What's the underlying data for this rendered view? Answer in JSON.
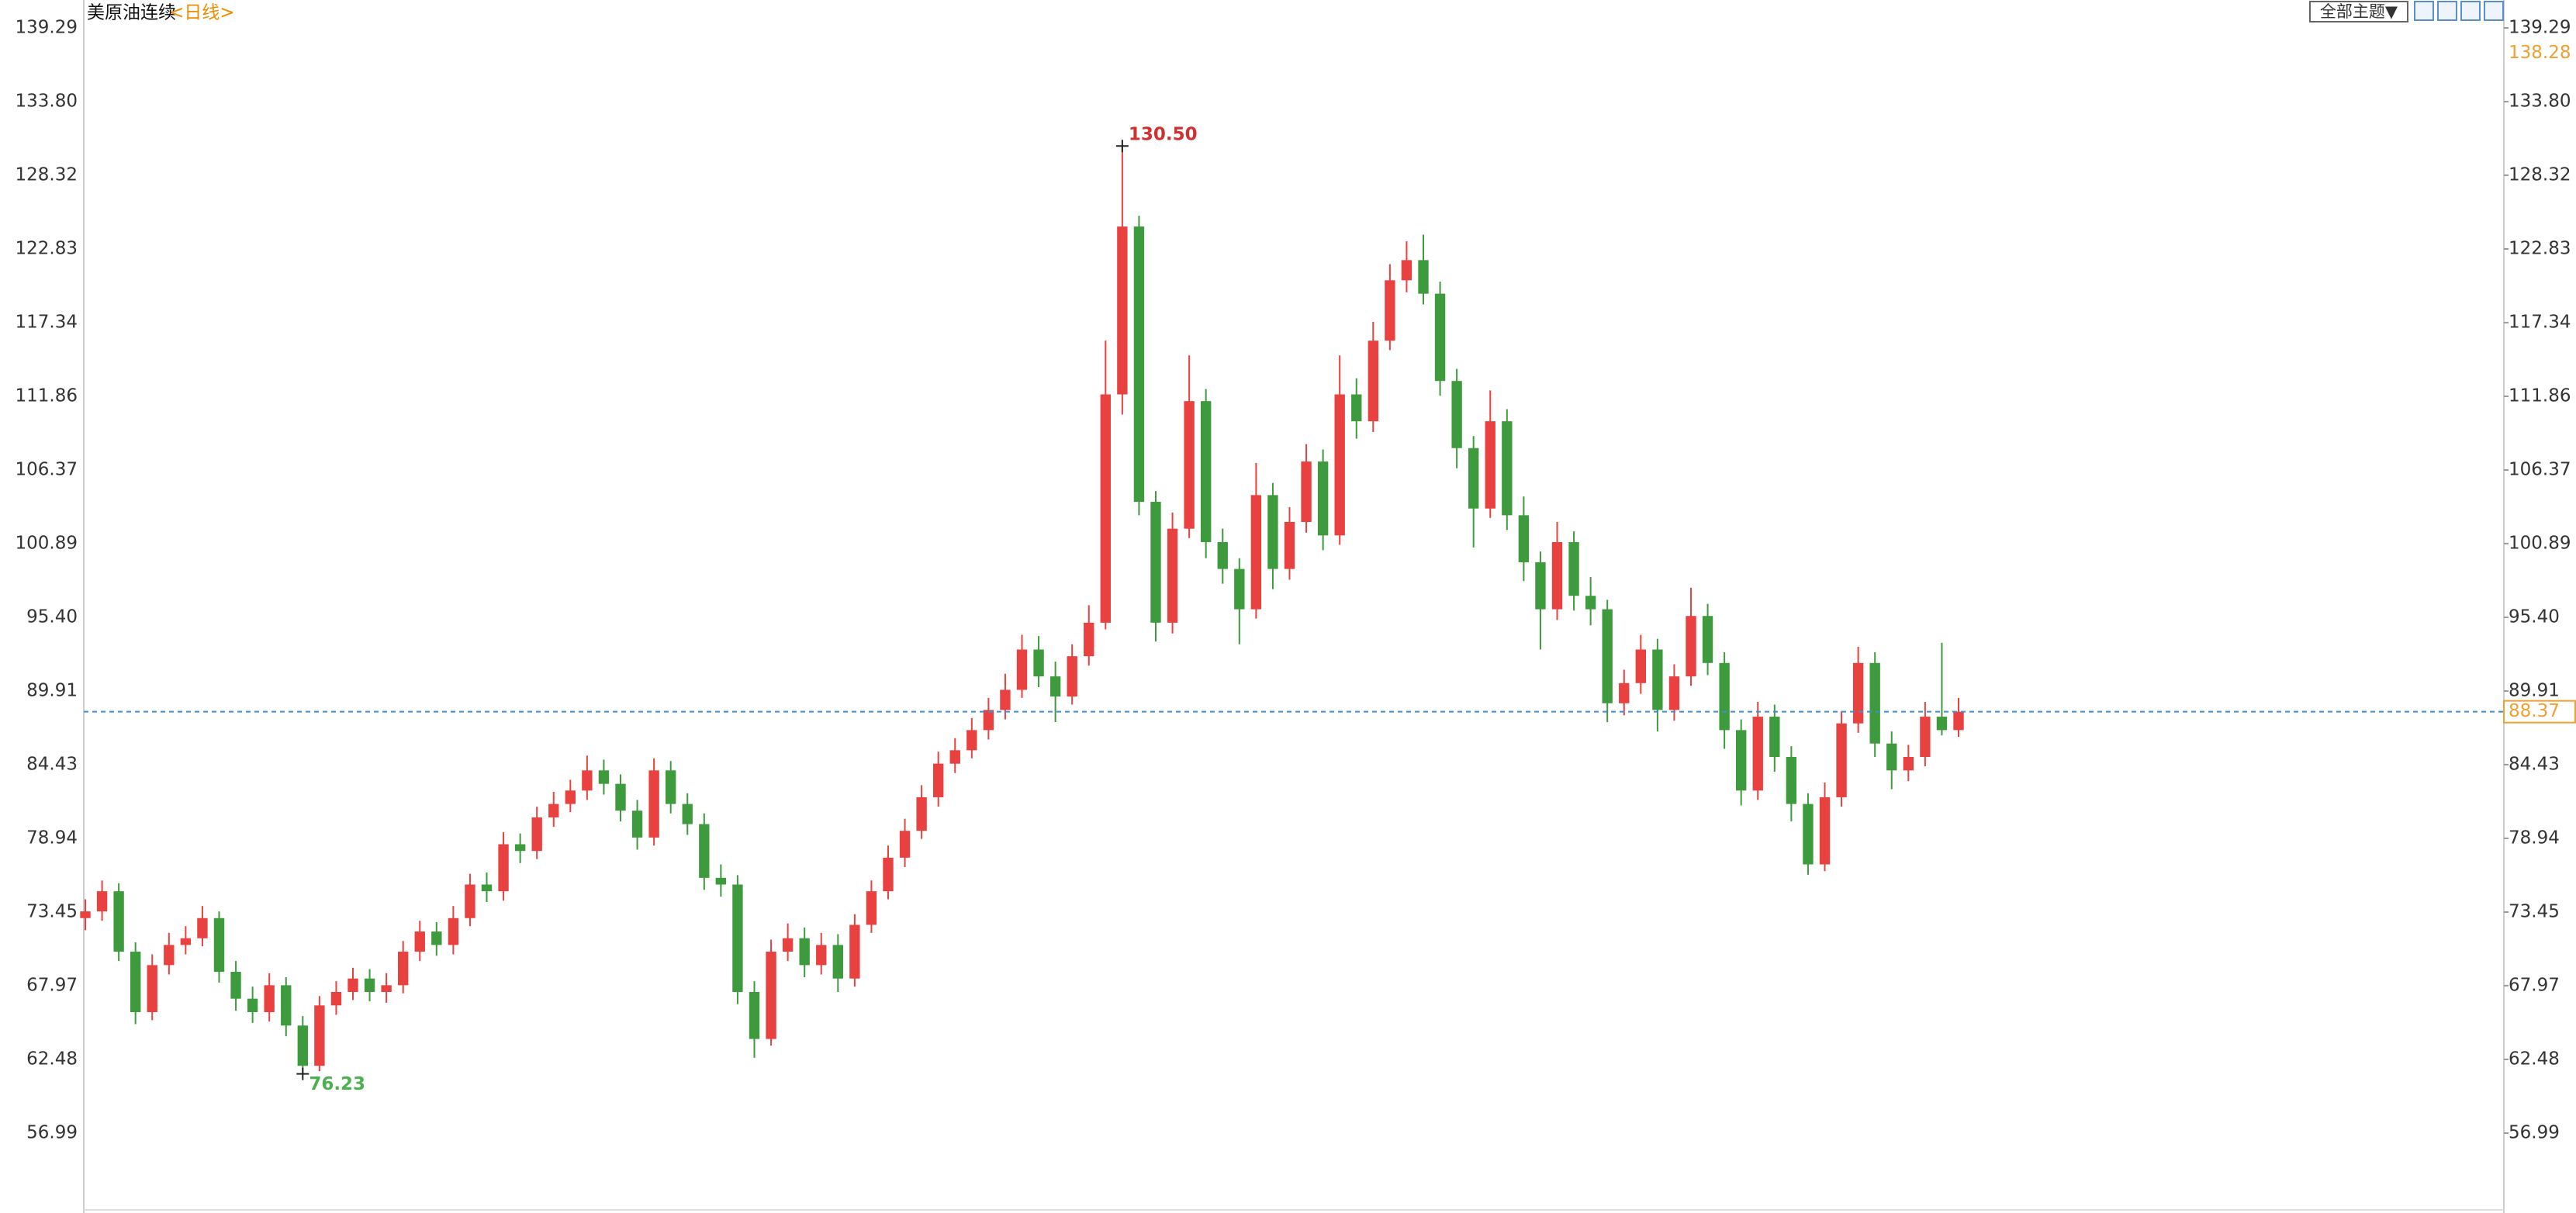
{
  "chart_data": {
    "type": "candlestick",
    "title": "美原油连续",
    "subtitle": "<日线>",
    "theme_button": "全部主题▼",
    "up_color": "#e8413f",
    "down_color": "#3d9b3d",
    "ylim": [
      51.04,
      141.37
    ],
    "yticks": [
      139.29,
      {
        "value": 133.8,
        "label": "133.80"
      },
      128.32,
      122.83,
      117.34,
      111.86,
      106.37,
      100.89,
      {
        "value": 95.4,
        "label": "95.40"
      },
      89.91,
      84.43,
      78.94,
      73.45,
      67.97,
      62.48,
      56.99
    ],
    "cursor_value": {
      "value": 138.28,
      "label": "138.28"
    },
    "current_price": {
      "value": 88.37,
      "label": "88.37"
    },
    "annotations": [
      "130.50",
      "76.23"
    ],
    "open": [
      73.0,
      73.5,
      75.0,
      70.5,
      66.0,
      69.5,
      71.0,
      71.5,
      73.0,
      69.0,
      67.0,
      66.0,
      68.0,
      65.0,
      62.0,
      66.5,
      67.5,
      68.5,
      67.5,
      68.0,
      70.5,
      72.0,
      71.0,
      73.0,
      75.5,
      75.0,
      78.5,
      78.0,
      80.5,
      81.5,
      82.5,
      84.0,
      83.0,
      81.0,
      79.0,
      84.0,
      81.5,
      80.0,
      76.0,
      75.5,
      67.5,
      64.0,
      70.5,
      71.5,
      69.5,
      71.0,
      68.5,
      72.5,
      75.0,
      77.5,
      79.5,
      82.0,
      84.5,
      85.5,
      87.0,
      88.5,
      90.0,
      93.0,
      91.0,
      89.5,
      92.5,
      95.0,
      112.0,
      124.5,
      104.0,
      95.0,
      102.0,
      111.5,
      101.0,
      99.0,
      96.0,
      104.5,
      99.0,
      102.5,
      107.0,
      101.5,
      112.0,
      110.0,
      116.0,
      120.5,
      122.0,
      119.5,
      113.0,
      108.0,
      103.5,
      110.0,
      103.0,
      99.5,
      96.0,
      101.0,
      97.0,
      96.0,
      89.0,
      90.5,
      93.0,
      88.5,
      91.0,
      95.5,
      92.0,
      87.0,
      82.5,
      88.0,
      85.0,
      81.5,
      77.0,
      82.0,
      87.5,
      92.0,
      86.0,
      84.0,
      85.0,
      88.0,
      87.0
    ],
    "high": [
      74.4,
      75.8,
      75.6,
      71.2,
      70.3,
      71.9,
      72.4,
      73.9,
      73.5,
      69.8,
      67.9,
      68.9,
      68.6,
      65.7,
      67.2,
      68.3,
      69.3,
      69.2,
      68.9,
      71.3,
      72.8,
      72.7,
      73.9,
      76.3,
      76.4,
      79.4,
      79.3,
      81.3,
      82.4,
      83.3,
      85.1,
      84.8,
      83.7,
      81.8,
      84.9,
      84.7,
      82.3,
      80.8,
      77.0,
      76.2,
      68.3,
      71.4,
      72.6,
      72.3,
      71.9,
      71.8,
      73.3,
      75.8,
      78.4,
      80.4,
      82.9,
      85.4,
      86.4,
      87.9,
      89.4,
      91.2,
      94.1,
      94.0,
      92.1,
      93.4,
      96.3,
      116.0,
      130.5,
      125.3,
      104.8,
      103.2,
      114.9,
      112.4,
      102.0,
      99.8,
      106.9,
      105.4,
      103.6,
      108.3,
      107.9,
      114.9,
      113.2,
      117.4,
      121.7,
      123.4,
      123.9,
      120.4,
      113.9,
      108.9,
      112.3,
      110.9,
      104.4,
      100.3,
      102.5,
      101.8,
      98.4,
      96.7,
      91.5,
      94.1,
      93.8,
      91.9,
      97.6,
      96.4,
      92.8,
      87.8,
      89.1,
      88.9,
      85.8,
      82.3,
      83.1,
      88.4,
      93.2,
      92.8,
      86.9,
      85.9,
      89.1,
      93.5,
      89.4
    ],
    "low": [
      72.1,
      72.8,
      69.8,
      65.1,
      65.4,
      68.8,
      70.3,
      70.9,
      68.2,
      66.1,
      65.2,
      65.3,
      64.2,
      61.4,
      61.6,
      65.8,
      66.9,
      66.8,
      66.7,
      67.4,
      69.8,
      70.2,
      70.3,
      72.4,
      74.2,
      74.3,
      77.1,
      77.4,
      79.8,
      80.9,
      81.8,
      82.2,
      80.2,
      78.1,
      78.4,
      80.8,
      79.2,
      75.1,
      74.6,
      66.6,
      62.6,
      63.5,
      69.8,
      68.6,
      68.8,
      67.5,
      67.9,
      71.9,
      74.4,
      76.8,
      78.9,
      81.3,
      83.8,
      84.9,
      86.3,
      87.8,
      89.4,
      90.2,
      87.6,
      88.9,
      91.8,
      94.5,
      110.5,
      103.0,
      93.6,
      94.2,
      101.3,
      99.8,
      97.9,
      93.4,
      95.3,
      97.5,
      98.2,
      101.7,
      100.4,
      100.8,
      108.7,
      109.2,
      115.3,
      119.6,
      118.7,
      111.9,
      106.5,
      100.6,
      102.8,
      101.9,
      98.1,
      93.0,
      95.2,
      95.9,
      94.8,
      87.6,
      88.1,
      89.7,
      86.9,
      87.7,
      90.3,
      91.1,
      85.6,
      81.4,
      81.8,
      83.9,
      80.2,
      76.23,
      76.5,
      81.3,
      86.8,
      85.0,
      82.6,
      83.2,
      84.3,
      86.6,
      86.5
    ],
    "close": [
      73.5,
      75.0,
      70.5,
      66.0,
      69.5,
      71.0,
      71.5,
      73.0,
      69.0,
      67.0,
      66.0,
      68.0,
      65.0,
      62.0,
      66.5,
      67.5,
      68.5,
      67.5,
      68.0,
      70.5,
      72.0,
      71.0,
      73.0,
      75.5,
      75.0,
      78.5,
      78.0,
      80.5,
      81.5,
      82.5,
      84.0,
      83.0,
      81.0,
      79.0,
      84.0,
      81.5,
      80.0,
      76.0,
      75.5,
      67.5,
      64.0,
      70.5,
      71.5,
      69.5,
      71.0,
      68.5,
      72.5,
      75.0,
      77.5,
      79.5,
      82.0,
      84.5,
      85.5,
      87.0,
      88.5,
      90.0,
      93.0,
      91.0,
      89.5,
      92.5,
      95.0,
      112.0,
      124.5,
      104.0,
      95.0,
      102.0,
      111.5,
      101.0,
      99.0,
      96.0,
      104.5,
      99.0,
      102.5,
      107.0,
      101.5,
      112.0,
      110.0,
      116.0,
      120.5,
      122.0,
      119.5,
      113.0,
      108.0,
      103.5,
      110.0,
      103.0,
      99.5,
      96.0,
      101.0,
      97.0,
      96.0,
      89.0,
      90.5,
      93.0,
      88.5,
      91.0,
      95.5,
      92.0,
      87.0,
      82.5,
      88.0,
      85.0,
      81.5,
      77.0,
      82.0,
      87.5,
      92.0,
      86.0,
      84.0,
      85.0,
      88.0,
      87.0,
      88.37
    ]
  }
}
